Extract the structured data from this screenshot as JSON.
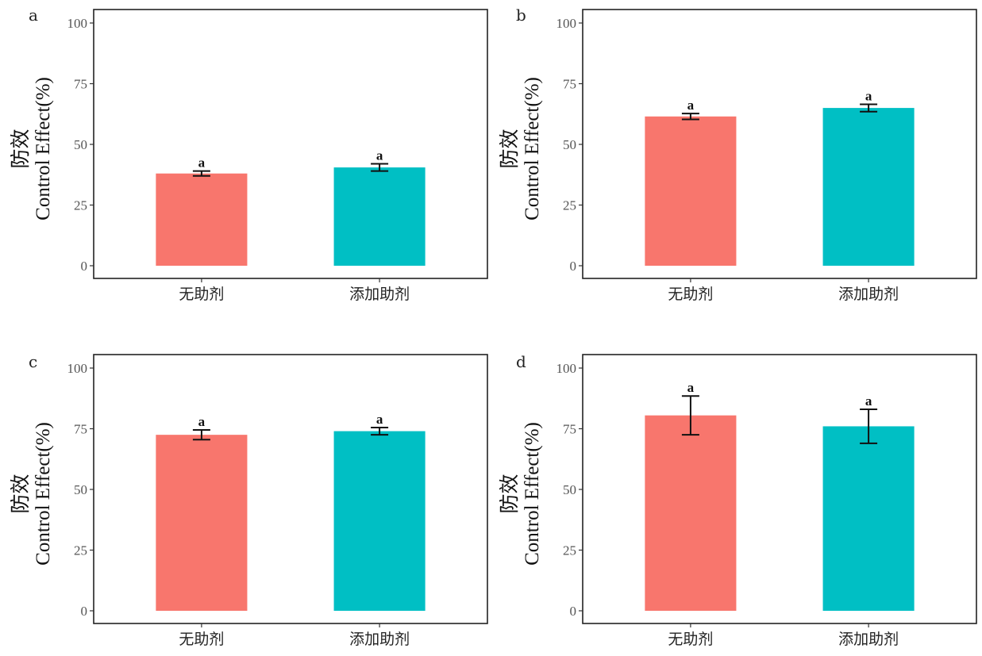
{
  "chart_data": [
    {
      "panel": "a",
      "type": "bar",
      "categories": [
        "无助剂",
        "添加助剂"
      ],
      "values": [
        38,
        40.5
      ],
      "errors": [
        1.0,
        1.5
      ],
      "significance": [
        "a",
        "a"
      ],
      "colors": [
        "#F8766D",
        "#00BFC4"
      ],
      "ylabel_cn": "防效",
      "ylabel": "Control Effect(%)",
      "ylim": [
        0,
        100
      ],
      "yticks": [
        0,
        25,
        50,
        75,
        100
      ],
      "grid": false
    },
    {
      "panel": "b",
      "type": "bar",
      "categories": [
        "无助剂",
        "添加助剂"
      ],
      "values": [
        61.5,
        65
      ],
      "errors": [
        1.2,
        1.5
      ],
      "significance": [
        "a",
        "a"
      ],
      "colors": [
        "#F8766D",
        "#00BFC4"
      ],
      "ylabel_cn": "防效",
      "ylabel": "Control Effect(%)",
      "ylim": [
        0,
        100
      ],
      "yticks": [
        0,
        25,
        50,
        75,
        100
      ],
      "grid": false
    },
    {
      "panel": "c",
      "type": "bar",
      "categories": [
        "无助剂",
        "添加助剂"
      ],
      "values": [
        72.5,
        74
      ],
      "errors": [
        2.0,
        1.5
      ],
      "significance": [
        "a",
        "a"
      ],
      "colors": [
        "#F8766D",
        "#00BFC4"
      ],
      "ylabel_cn": "防效",
      "ylabel": "Control Effect(%)",
      "ylim": [
        0,
        100
      ],
      "yticks": [
        0,
        25,
        50,
        75,
        100
      ],
      "grid": false
    },
    {
      "panel": "d",
      "type": "bar",
      "categories": [
        "无助剂",
        "添加助剂"
      ],
      "values": [
        80.5,
        76
      ],
      "errors": [
        8.0,
        7.0
      ],
      "significance": [
        "a",
        "a"
      ],
      "colors": [
        "#F8766D",
        "#00BFC4"
      ],
      "ylabel_cn": "防效",
      "ylabel": "Control Effect(%)",
      "ylim": [
        0,
        100
      ],
      "yticks": [
        0,
        25,
        50,
        75,
        100
      ],
      "grid": false
    }
  ]
}
